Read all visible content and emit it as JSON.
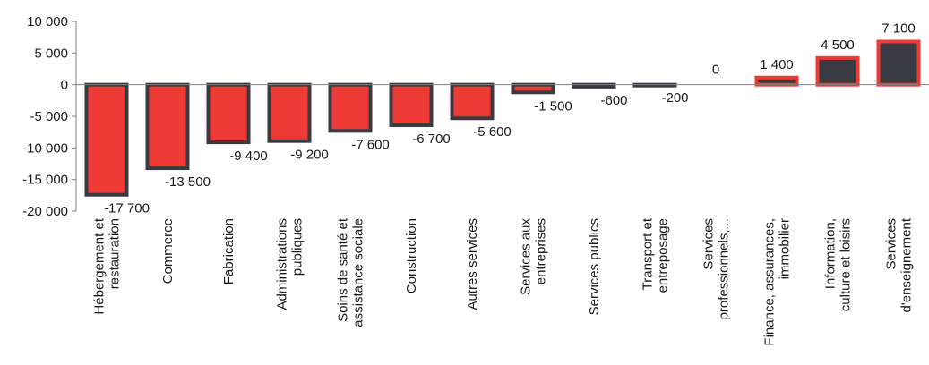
{
  "chart_data": {
    "type": "bar",
    "title": "",
    "xlabel": "",
    "ylabel": "",
    "ylim": [
      -20000,
      10000
    ],
    "yticks": [
      10000,
      5000,
      0,
      -5000,
      -10000,
      -15000,
      -20000
    ],
    "ytick_labels": [
      "10 000",
      "5 000",
      "0",
      "-5 000",
      "-10 000",
      "-15 000",
      "-20 000"
    ],
    "grid": false,
    "legend": "none",
    "categories": [
      [
        "Hébergement et",
        "restauration"
      ],
      [
        "Commerce"
      ],
      [
        "Fabrication"
      ],
      [
        "Administrations",
        "publiques"
      ],
      [
        "Soins de santé et",
        "assistance sociale"
      ],
      [
        "Construction"
      ],
      [
        "Autres services"
      ],
      [
        "Services aux",
        "entreprises"
      ],
      [
        "Services publics"
      ],
      [
        "Transport et",
        "entreposage"
      ],
      [
        "Services",
        "professionnels,..."
      ],
      [
        "Finance, assurances,",
        "immobilier"
      ],
      [
        "Information,",
        "culture et loisirs"
      ],
      [
        "Services",
        "d'enseignement"
      ]
    ],
    "values": [
      -17700,
      -13500,
      -9400,
      -9200,
      -7600,
      -6700,
      -5600,
      -1500,
      -600,
      -200,
      0,
      1400,
      4500,
      7100
    ],
    "value_labels": [
      "-17 700",
      "-13 500",
      "-9 400",
      "-9 200",
      "-7 600",
      "-6 700",
      "-5 600",
      "-1 500",
      "-600",
      "-200",
      "0",
      "1 400",
      "4 500",
      "7 100"
    ],
    "colors": {
      "negative_fill": "#ee3a35",
      "negative_stroke": "#3a3a42",
      "positive_fill": "#3a3a42",
      "positive_stroke": "#ee3a35",
      "axis": "#808080",
      "text": "#1a1a1a"
    }
  }
}
